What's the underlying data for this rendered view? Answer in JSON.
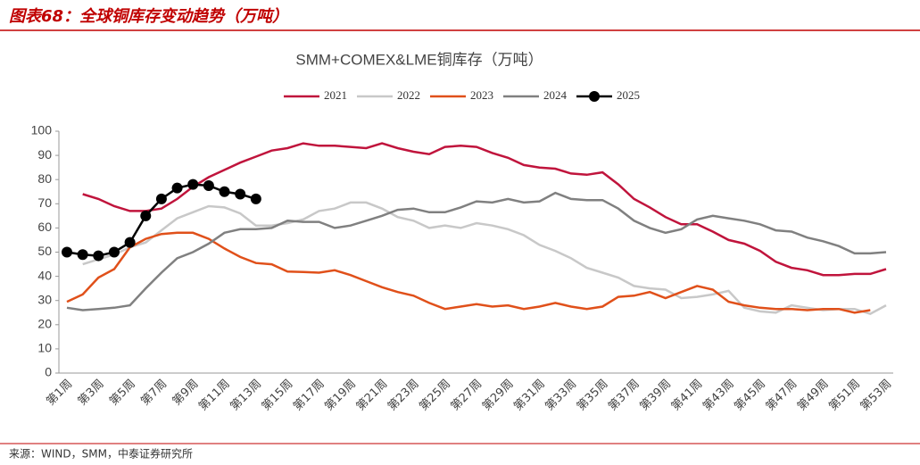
{
  "header": {
    "title": "图表68：全球铜库存变动趋势（万吨）"
  },
  "source": "来源：WIND，SMM，中泰证券研究所",
  "chart_data": {
    "type": "line",
    "title": "SMM+COMEX&LME铜库存（万吨）",
    "legend": "top",
    "grid": false,
    "ylim": [
      0,
      100
    ],
    "yticks": [
      0,
      10,
      20,
      30,
      40,
      50,
      60,
      70,
      80,
      90,
      100
    ],
    "categories": [
      "第1周",
      null,
      "第3周",
      null,
      "第5周",
      null,
      "第7周",
      null,
      "第9周",
      null,
      "第11周",
      null,
      "第13周",
      null,
      "第15周",
      null,
      "第17周",
      null,
      "第19周",
      null,
      "第21周",
      null,
      "第23周",
      null,
      "第25周",
      null,
      "第27周",
      null,
      "第29周",
      null,
      "第31周",
      null,
      "第33周",
      null,
      "第35周",
      null,
      "第37周",
      null,
      "第39周",
      null,
      "第41周",
      null,
      "第43周",
      null,
      "第45周",
      null,
      "第47周",
      null,
      "第49周",
      null,
      "第51周",
      null,
      "第53周"
    ],
    "series": [
      {
        "name": "2021",
        "color": "#c0143c",
        "markers": false,
        "values": [
          null,
          74,
          72,
          69,
          67,
          67,
          68,
          72,
          77,
          81,
          84,
          87,
          89.5,
          92,
          93,
          95,
          94,
          94,
          93.5,
          93,
          95,
          93,
          91.5,
          90.5,
          93.5,
          94,
          93.5,
          91,
          89,
          86,
          85,
          84.5,
          82.5,
          82,
          83,
          78,
          72,
          68.5,
          64.5,
          61.5,
          61.5,
          58.5,
          55,
          53.5,
          50.5,
          46,
          43.5,
          42.5,
          40.5,
          40.5,
          41,
          41,
          43
        ]
      },
      {
        "name": "2022",
        "color": "#c8c8c8",
        "markers": false,
        "values": [
          null,
          45,
          47,
          49,
          52,
          54,
          59,
          64,
          66.5,
          69,
          68.5,
          66,
          61,
          61,
          62,
          63.5,
          67,
          68,
          70.5,
          70.5,
          68,
          64.5,
          63,
          60,
          61,
          60,
          62,
          61,
          59.5,
          57,
          53,
          50.5,
          47.5,
          43.5,
          41.5,
          39.5,
          36,
          35,
          34.5,
          31,
          31.5,
          32.5,
          34,
          27,
          25.5,
          25,
          28,
          27,
          26,
          26.5,
          26.5,
          24.5,
          28
        ]
      },
      {
        "name": "2023",
        "color": "#e0501a",
        "markers": false,
        "values": [
          29.5,
          32.5,
          39.5,
          43,
          52,
          55.5,
          57.5,
          58,
          58,
          55.5,
          51.5,
          48,
          45.5,
          45,
          42,
          41.8,
          41.5,
          42.5,
          40.5,
          38,
          35.5,
          33.5,
          32,
          29,
          26.5,
          27.5,
          28.5,
          27.5,
          28,
          26.5,
          27.5,
          29,
          27.5,
          26.5,
          27.5,
          31.5,
          32,
          33.5,
          31,
          33.5,
          36,
          34.5,
          29.5,
          28,
          27,
          26.5,
          26.5,
          26,
          26.5,
          26.5,
          25,
          26,
          null
        ]
      },
      {
        "name": "2024",
        "color": "#808080",
        "markers": false,
        "values": [
          27,
          26,
          26.5,
          27,
          28,
          35,
          41.5,
          47.5,
          50,
          53.5,
          58,
          59.5,
          59.5,
          60,
          63,
          62.5,
          62.5,
          60,
          61,
          63,
          65,
          67.5,
          68,
          66.5,
          66.5,
          68.5,
          71,
          70.5,
          72,
          70.5,
          71,
          74.5,
          72,
          71.5,
          71.5,
          68,
          63,
          60,
          58,
          59.5,
          63.5,
          65,
          64,
          63,
          61.5,
          59,
          58.5,
          56,
          54.5,
          52.5,
          49.5,
          49.5,
          50
        ]
      },
      {
        "name": "2025",
        "color": "#000000",
        "markers": true,
        "values": [
          50,
          49,
          48.5,
          50,
          54,
          65,
          72,
          76.5,
          78,
          77.5,
          75,
          74,
          72,
          null,
          null,
          null,
          null,
          null,
          null,
          null,
          null,
          null,
          null,
          null,
          null,
          null,
          null,
          null,
          null,
          null,
          null,
          null,
          null,
          null,
          null,
          null,
          null,
          null,
          null,
          null,
          null,
          null,
          null,
          null,
          null,
          null,
          null,
          null,
          null,
          null,
          null,
          null,
          null
        ]
      }
    ]
  }
}
